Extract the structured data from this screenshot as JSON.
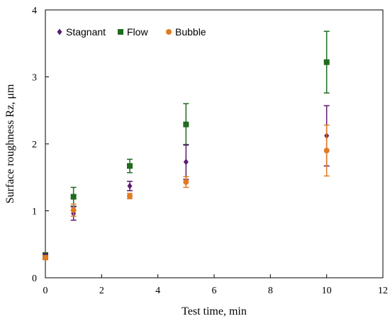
{
  "chart_data": {
    "type": "scatter",
    "xlabel": "Test time, min",
    "ylabel": "Surface roughness Rz, μm",
    "xlim": [
      0,
      12
    ],
    "ylim": [
      0,
      4
    ],
    "xticks": [
      "0",
      "2",
      "4",
      "6",
      "8",
      "10",
      "12"
    ],
    "yticks": [
      "0",
      "1",
      "2",
      "3",
      "4"
    ],
    "grid": false,
    "legend_position": "top-left",
    "series": [
      {
        "name": "Stagnant",
        "marker": "diamond",
        "color": "#5b1a6e",
        "points": [
          {
            "x": 0,
            "y": 0.32,
            "err": 0.04
          },
          {
            "x": 1,
            "y": 0.96,
            "err": 0.1
          },
          {
            "x": 3,
            "y": 1.37,
            "err": 0.07
          },
          {
            "x": 5,
            "y": 1.73,
            "err": 0.26
          },
          {
            "x": 10,
            "y": 2.12,
            "err": 0.45
          }
        ]
      },
      {
        "name": "Flow",
        "marker": "square",
        "color": "#1f6b1f",
        "points": [
          {
            "x": 0,
            "y": 0.34,
            "err": 0.03
          },
          {
            "x": 1,
            "y": 1.21,
            "err": 0.14
          },
          {
            "x": 3,
            "y": 1.67,
            "err": 0.1
          },
          {
            "x": 5,
            "y": 2.29,
            "err": 0.31
          },
          {
            "x": 10,
            "y": 3.22,
            "err": 0.46
          }
        ]
      },
      {
        "name": "Bubble",
        "marker": "circle",
        "color": "#e07b22",
        "points": [
          {
            "x": 0,
            "y": 0.3,
            "err": 0.03
          },
          {
            "x": 1,
            "y": 1.01,
            "err": 0.09
          },
          {
            "x": 3,
            "y": 1.22,
            "err": 0.04
          },
          {
            "x": 5,
            "y": 1.43,
            "err": 0.08
          },
          {
            "x": 10,
            "y": 1.9,
            "err": 0.38
          }
        ]
      }
    ]
  }
}
